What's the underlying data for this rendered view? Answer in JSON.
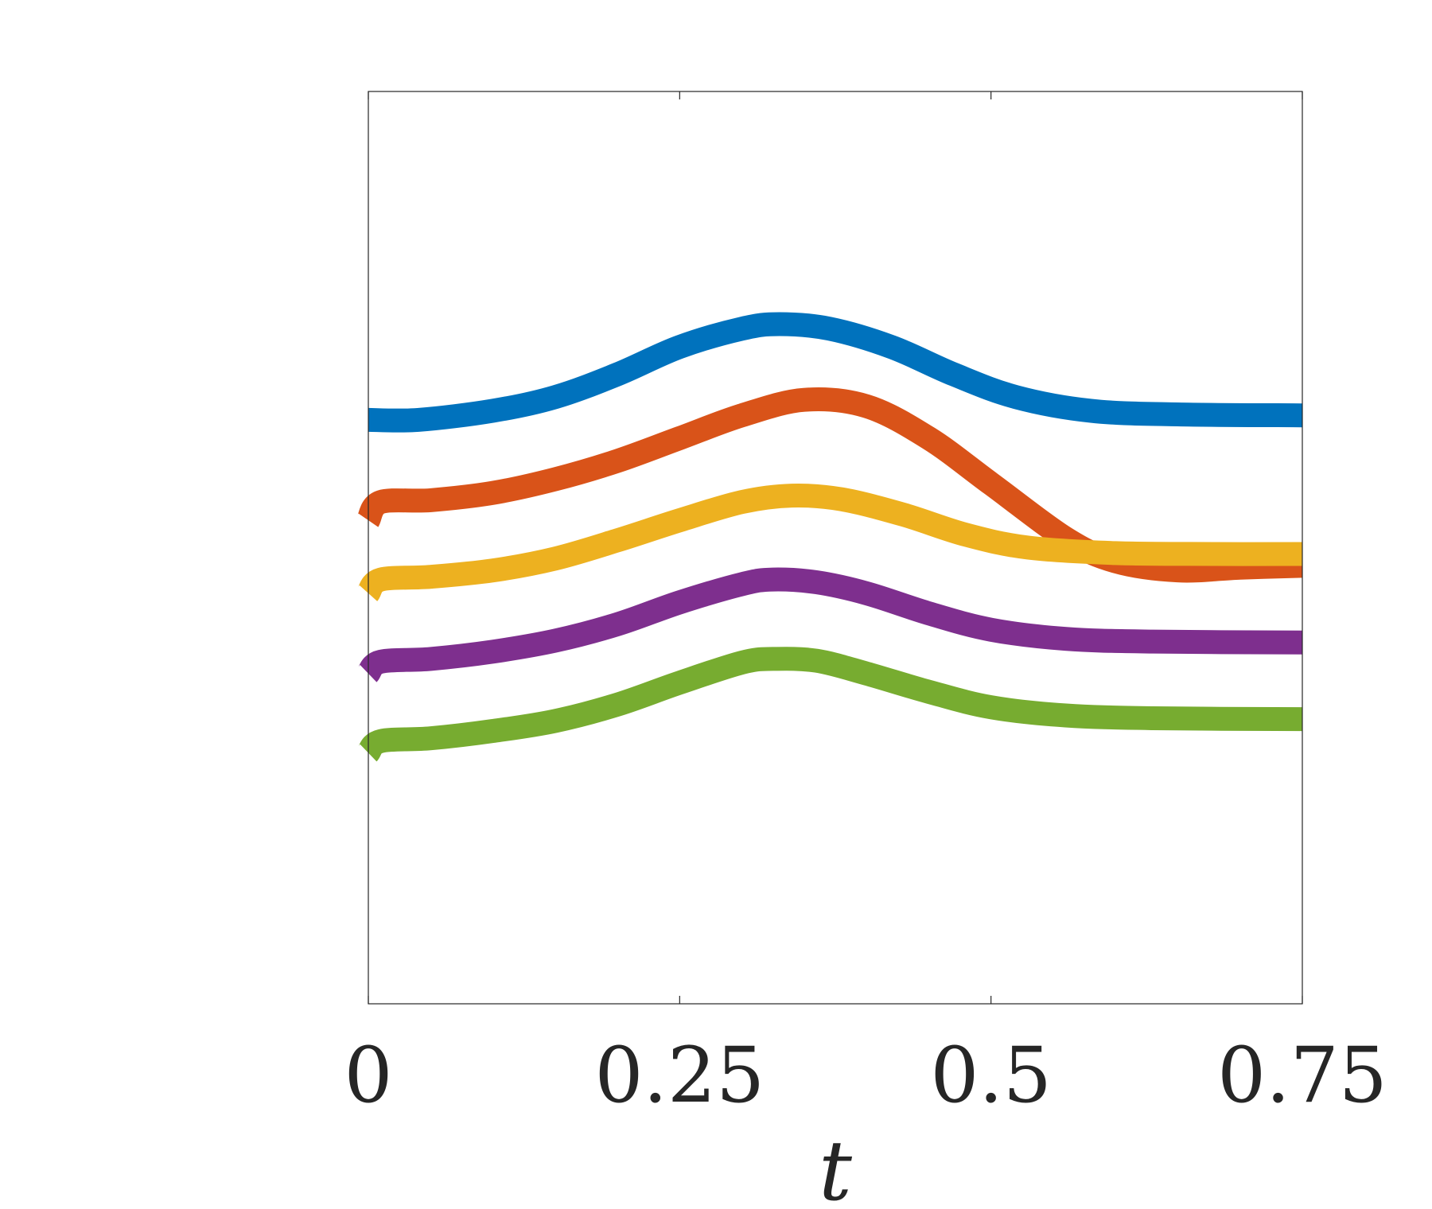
{
  "chart_data": {
    "type": "line",
    "title": "",
    "xlabel": "t",
    "ylabel": "",
    "xlim": [
      0,
      0.75
    ],
    "ylim": [
      0,
      1
    ],
    "xticks": [
      0,
      0.25,
      0.5,
      0.75
    ],
    "xtick_labels": [
      "0",
      "0.25",
      "0.5",
      "0.75"
    ],
    "grid": false,
    "legend": "none",
    "series": [
      {
        "color": "#0072BD",
        "x": [
          0,
          0.04,
          0.1,
          0.15,
          0.2,
          0.25,
          0.3,
          0.33,
          0.37,
          0.42,
          0.47,
          0.52,
          0.58,
          0.65,
          0.75
        ],
        "y": [
          0.64,
          0.64,
          0.65,
          0.665,
          0.69,
          0.72,
          0.74,
          0.745,
          0.74,
          0.72,
          0.69,
          0.665,
          0.65,
          0.646,
          0.645
        ]
      },
      {
        "color": "#D95319",
        "x": [
          0,
          0.01,
          0.05,
          0.1,
          0.15,
          0.2,
          0.25,
          0.3,
          0.35,
          0.4,
          0.45,
          0.5,
          0.56,
          0.6,
          0.65,
          0.7,
          0.75
        ],
        "y": [
          0.53,
          0.55,
          0.552,
          0.56,
          0.575,
          0.595,
          0.62,
          0.645,
          0.662,
          0.655,
          0.62,
          0.57,
          0.51,
          0.485,
          0.475,
          0.478,
          0.48
        ]
      },
      {
        "color": "#EDB120",
        "x": [
          0,
          0.01,
          0.05,
          0.1,
          0.15,
          0.2,
          0.25,
          0.3,
          0.34,
          0.38,
          0.43,
          0.48,
          0.53,
          0.6,
          0.68,
          0.75
        ],
        "y": [
          0.45,
          0.465,
          0.468,
          0.475,
          0.488,
          0.508,
          0.53,
          0.55,
          0.557,
          0.553,
          0.536,
          0.514,
          0.5,
          0.494,
          0.493,
          0.493
        ]
      },
      {
        "color": "#7E2F8E",
        "x": [
          0,
          0.01,
          0.05,
          0.1,
          0.15,
          0.2,
          0.25,
          0.3,
          0.325,
          0.36,
          0.4,
          0.45,
          0.5,
          0.56,
          0.63,
          0.75
        ],
        "y": [
          0.362,
          0.375,
          0.378,
          0.386,
          0.398,
          0.416,
          0.44,
          0.46,
          0.465,
          0.462,
          0.45,
          0.428,
          0.41,
          0.4,
          0.397,
          0.396
        ]
      },
      {
        "color": "#77AC30",
        "x": [
          0,
          0.01,
          0.05,
          0.1,
          0.15,
          0.2,
          0.25,
          0.3,
          0.325,
          0.36,
          0.4,
          0.45,
          0.5,
          0.56,
          0.63,
          0.75
        ],
        "y": [
          0.275,
          0.288,
          0.291,
          0.299,
          0.31,
          0.328,
          0.352,
          0.374,
          0.378,
          0.376,
          0.362,
          0.342,
          0.325,
          0.316,
          0.313,
          0.312
        ]
      }
    ]
  }
}
